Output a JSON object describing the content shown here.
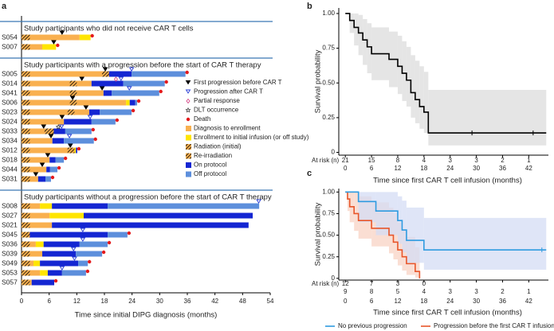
{
  "chart_data": [
    {
      "type": "swimmer",
      "label": "a",
      "xlabel": "Time since initial DIPG diagnosis (months)",
      "xlim": [
        0,
        54
      ],
      "xticks": [
        0,
        6,
        12,
        18,
        24,
        30,
        36,
        42,
        48,
        54
      ],
      "marker_legend": [
        {
          "label": "First progression before CAR T",
          "color": "#000000"
        },
        {
          "label": "Progression after CAR T",
          "color": "#2a3fd6"
        },
        {
          "label": "Partial response",
          "color": "#d64a8a"
        },
        {
          "label": "DLT occurrence",
          "color": "#333333"
        },
        {
          "label": "Death",
          "color": "#e41a1c"
        }
      ],
      "bar_legend": [
        {
          "label": "Diagnosis to enrollment",
          "color": "#f9b04f"
        },
        {
          "label": "Enrollment to initial infusion (or off study)",
          "color": "#ffe500"
        },
        {
          "label": "Radiation (initial)",
          "color": "#000000"
        },
        {
          "label": "Re-irradiation",
          "color": "#000000"
        },
        {
          "label": "On protocol",
          "color": "#1426d2"
        },
        {
          "label": "Off protocol",
          "color": "#5d8fdc"
        }
      ],
      "groups": [
        {
          "title": "Study participants who did not receive CAR T cells",
          "participants": [
            {
              "name": "S054",
              "segments": [
                12.6,
                2.4,
                0,
                0
              ],
              "radiation": 1.8,
              "first_progression": 8.8,
              "death": true
            },
            {
              "name": "S007",
              "segments": [
                4.5,
                3,
                0,
                0
              ],
              "radiation": 1.8,
              "first_progression": 7,
              "death": true
            }
          ]
        },
        {
          "title": "Study participants with a progression before the start of CAR T therapy",
          "participants": [
            {
              "name": "S005",
              "segments": [
                18.7,
                0,
                5.2,
                11.7
              ],
              "radiation": 1.8,
              "reirradiation": [
                17.5,
                1.5
              ],
              "first_progression": 18.2,
              "progression_after": 23.9,
              "death": true
            },
            {
              "name": "S014",
              "segments": [
                15.2,
                0,
                6.9,
                9
              ],
              "radiation": 1.8,
              "reirradiation": [
                10.5,
                1.5
              ],
              "first_progression": 13.1,
              "progression_after": 21.6,
              "partial_response": 20.5,
              "death": true
            },
            {
              "name": "S041",
              "segments": [
                17.8,
                0,
                1.8,
                10.3
              ],
              "radiation": 1.8,
              "reirradiation": [
                10.5,
                1.5
              ],
              "first_progression": 17.5,
              "progression_after": 23.4,
              "death": true
            },
            {
              "name": "S006",
              "segments": [
                22.7,
                0.8,
                1.2,
                0.4
              ],
              "radiation": 1.8,
              "reirradiation": [
                10.5,
                1.5
              ],
              "first_progression": 11.1,
              "death": true
            },
            {
              "name": "S023",
              "segments": [
                14.7,
                0,
                2.3,
                6.9
              ],
              "radiation": 1.8,
              "reirradiation": [
                10,
                1.5
              ],
              "first_progression": 14,
              "death": true
            },
            {
              "name": "S024",
              "segments": [
                9.2,
                0,
                6,
                5.2
              ],
              "radiation": 1.8,
              "first_progression": 8.8,
              "progression_after": 14.9,
              "death": true
            },
            {
              "name": "S033",
              "segments": [
                5.7,
                1.2,
                2.6,
                5.7
              ],
              "radiation": 1.8,
              "reirradiation": [
                5,
                2
              ],
              "first_progression": 4.8,
              "progression_after": 8.7,
              "dlt": 8,
              "death": true
            },
            {
              "name": "S034",
              "segments": [
                6.7,
                0,
                2.5,
                6.5
              ],
              "radiation": 1.8,
              "first_progression": 6.4,
              "progression_after": 10.4,
              "death": true
            },
            {
              "name": "S012",
              "segments": [
                10.9,
                0.9,
                0.3,
                0
              ],
              "radiation": 1.8,
              "reirradiation": [
                10,
                1.5
              ],
              "first_progression": 10.6,
              "death": true
            },
            {
              "name": "S018",
              "segments": [
                6.1,
                0,
                1.3,
                1.8
              ],
              "radiation": 1.8,
              "first_progression": 5.7,
              "death": true
            },
            {
              "name": "S044",
              "segments": [
                5.4,
                0,
                0.8,
                1.6
              ],
              "radiation": 1.8,
              "first_progression": 4.5,
              "death": true
            },
            {
              "name": "S031",
              "segments": [
                3.6,
                0,
                1.6,
                1.2
              ],
              "radiation": 1.8,
              "first_progression": 3.1,
              "death": true
            }
          ]
        },
        {
          "title": "Study participants without a progression before the start of CAR T therapy",
          "participants": [
            {
              "name": "S008",
              "segments": [
                4,
                2.6,
                12.1,
                32.9
              ],
              "radiation": 1.8,
              "progression_after": 51.5,
              "death": false
            },
            {
              "name": "S027",
              "segments": [
                6.1,
                7.4,
                36.7,
                0
              ],
              "radiation": 1.8,
              "death": false
            },
            {
              "name": "S021",
              "segments": [
                6.6,
                0,
                42.7,
                0
              ],
              "radiation": 1.8,
              "death": false
            },
            {
              "name": "S045",
              "segments": [
                1.4,
                0,
                17.3,
                4.3
              ],
              "radiation": 1.8,
              "progression_after": 13.3,
              "death": true
            },
            {
              "name": "S036",
              "segments": [
                3.1,
                1.7,
                7.8,
                6.1
              ],
              "radiation": 1.8,
              "progression_after": 13.3,
              "death": true
            },
            {
              "name": "S039",
              "segments": [
                4.5,
                0,
                7.3,
                5.7
              ],
              "radiation": 1.8,
              "progression_after": 11.3,
              "death": true
            },
            {
              "name": "S049",
              "segments": [
                2.6,
                1.4,
                8.3,
                2.1
              ],
              "radiation": 1.8,
              "progression_after": 11.5,
              "death": true
            },
            {
              "name": "S053",
              "segments": [
                4,
                1.7,
                3.1,
                5.2
              ],
              "radiation": 1.8,
              "progression_after": 8.8,
              "death": true
            },
            {
              "name": "S057",
              "segments": [
                2.2,
                0,
                4.9,
                0
              ],
              "radiation": 1.8,
              "death": true
            }
          ]
        }
      ]
    },
    {
      "type": "km",
      "label": "b",
      "xlabel": "Time since first CAR T cell infusion (months)",
      "ylabel": "Survival probability",
      "risk_label": "At risk (n)",
      "xlim": [
        -1.5,
        46.5
      ],
      "xticks": [
        0,
        6,
        12,
        18,
        24,
        30,
        36,
        42
      ],
      "ylim": [
        -0.02,
        1.04
      ],
      "yticks": [
        0,
        0.25,
        {
          "value": 0.5,
          "label": "0.50"
        },
        0.75,
        {
          "value": 1,
          "label": "1.00"
        }
      ],
      "series": [
        {
          "color": "#000000",
          "band_color": "#dcdcdc",
          "risk_color": "#8c8c8c",
          "x": [
            0,
            1,
            2,
            3,
            4,
            5,
            6,
            10,
            12,
            13,
            14,
            15,
            16,
            17,
            18,
            19,
            46
          ],
          "values": [
            1,
            0.95,
            0.9,
            0.86,
            0.81,
            0.76,
            0.71,
            0.67,
            0.62,
            0.57,
            0.52,
            0.43,
            0.38,
            0.33,
            0.29,
            0.14,
            0.14
          ],
          "ci_upper": [
            1,
            1,
            1,
            0.99,
            0.96,
            0.93,
            0.9,
            0.87,
            0.84,
            0.8,
            0.76,
            0.7,
            0.66,
            0.62,
            0.58,
            0.45,
            0.45
          ],
          "ci_lower": [
            1,
            0.86,
            0.77,
            0.7,
            0.63,
            0.57,
            0.52,
            0.47,
            0.42,
            0.37,
            0.33,
            0.25,
            0.21,
            0.17,
            0.14,
            0.05,
            0.05
          ],
          "censored": [
            29,
            43
          ],
          "at_risk": [
            21,
            15,
            8,
            4,
            3,
            3,
            2,
            1
          ]
        }
      ]
    },
    {
      "type": "km",
      "label": "c",
      "xlabel": "Time since first CAR T cell infusion (months)",
      "ylabel": "Survival probability",
      "risk_label": "At risk (n)",
      "xlim": [
        -1.5,
        46.5
      ],
      "xticks": [
        0,
        6,
        12,
        18,
        24,
        30,
        36,
        42
      ],
      "ylim": [
        -0.02,
        1.04
      ],
      "yticks": [
        0,
        0.25,
        {
          "value": 0.5,
          "label": "0.50"
        },
        0.75,
        {
          "value": 1,
          "label": "1.00"
        }
      ],
      "series": [
        {
          "name": "Progression before the first CAR T infusion",
          "color": "#e8562a",
          "band_color": "#f8d3c4",
          "risk_color": "#e8562a",
          "x": [
            0,
            0.5,
            1,
            2,
            3,
            6,
            10,
            11,
            12,
            13,
            14,
            16,
            17
          ],
          "values": [
            1,
            0.92,
            0.83,
            0.75,
            0.67,
            0.58,
            0.5,
            0.42,
            0.33,
            0.25,
            0.17,
            0.08,
            0
          ],
          "ci_upper": [
            1,
            1,
            1,
            1,
            0.95,
            0.88,
            0.82,
            0.75,
            0.65,
            0.57,
            0.48,
            0.36,
            0
          ],
          "ci_lower": [
            1,
            0.78,
            0.65,
            0.55,
            0.46,
            0.37,
            0.29,
            0.22,
            0.15,
            0.09,
            0.04,
            0.01,
            0
          ],
          "censored": [],
          "at_risk": [
            12,
            7,
            3,
            0
          ]
        },
        {
          "name": "No previous progression",
          "color": "#2f9be0",
          "band_color": "#d4dcf4",
          "risk_color": "#2f9be0",
          "x": [
            0,
            3,
            7,
            12,
            13,
            14,
            18,
            46
          ],
          "values": [
            1,
            0.89,
            0.78,
            0.67,
            0.56,
            0.44,
            0.33,
            0.33
          ],
          "ci_upper": [
            1,
            1,
            1,
            0.95,
            0.9,
            0.82,
            0.7,
            0.7
          ],
          "ci_lower": [
            1,
            0.65,
            0.5,
            0.4,
            0.3,
            0.18,
            0.1,
            0.1
          ],
          "censored": [
            45
          ],
          "at_risk": [
            9,
            8,
            5,
            4,
            3,
            3,
            2,
            1
          ]
        }
      ]
    }
  ]
}
